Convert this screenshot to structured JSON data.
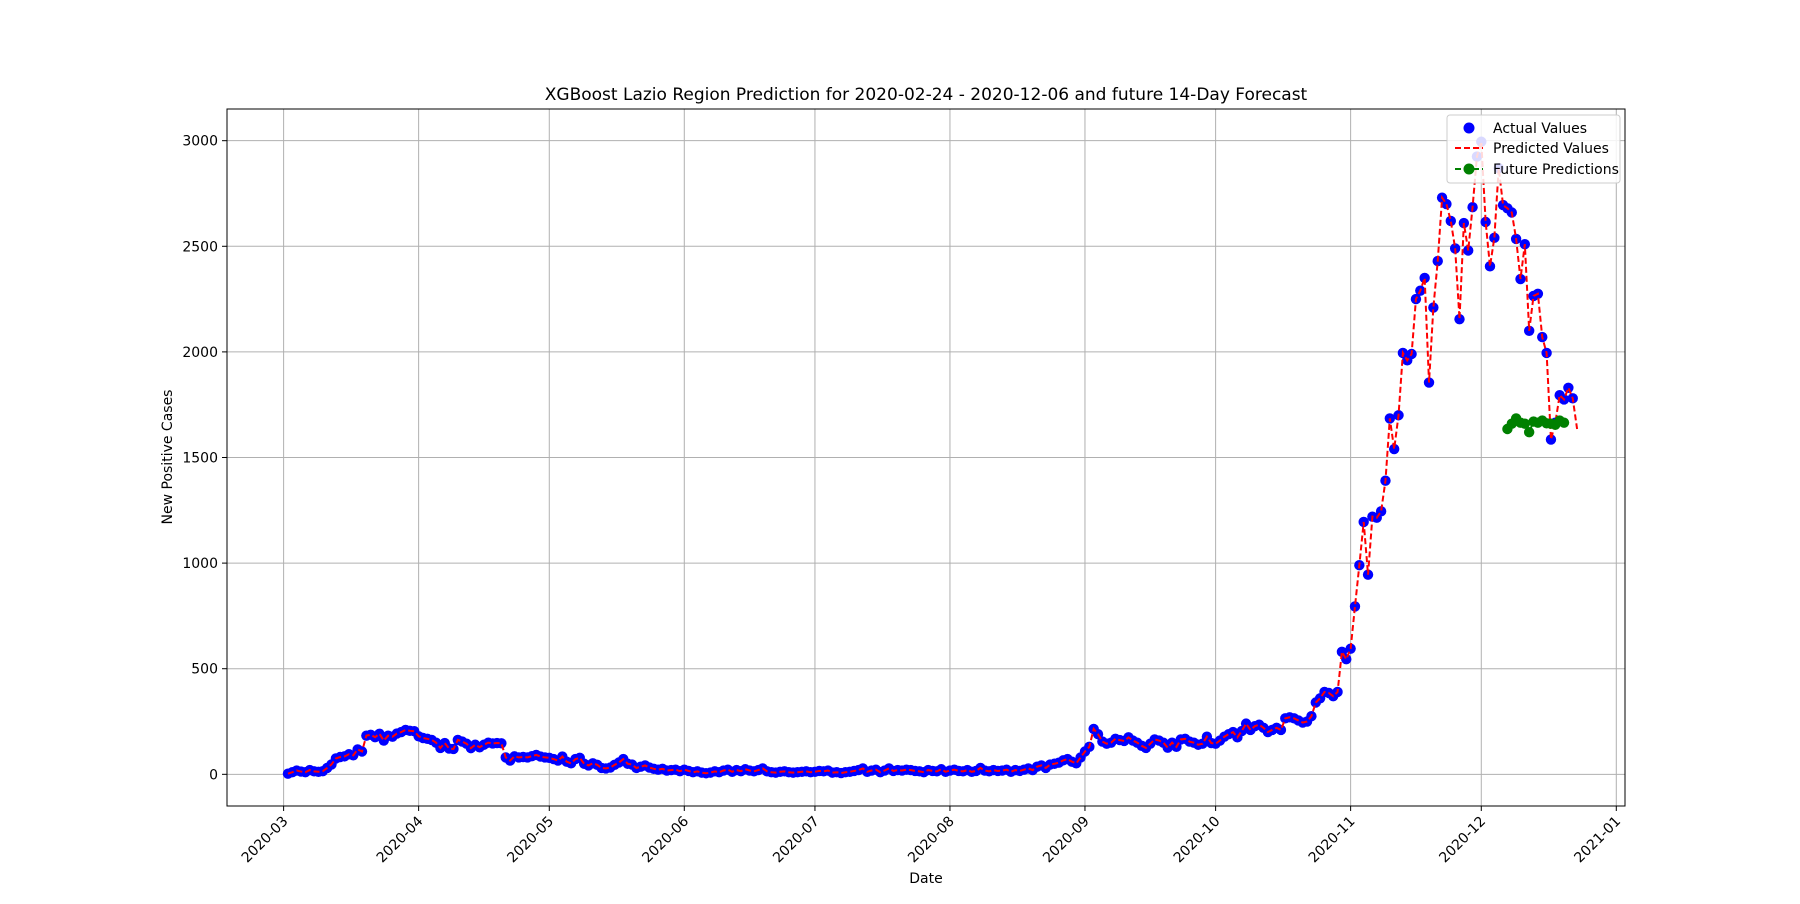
{
  "chart_data": {
    "type": "line",
    "title": "XGBoost Lazio Region Prediction for 2020-02-24 - 2020-12-06 and future 14-Day Forecast",
    "xlabel": "Date",
    "ylabel": "New Positive Cases",
    "x_range": [
      "2020-02-17",
      "2021-01-03"
    ],
    "ylim": [
      -150,
      3150
    ],
    "x_ticks": [
      "2020-03",
      "2020-04",
      "2020-05",
      "2020-06",
      "2020-07",
      "2020-08",
      "2020-09",
      "2020-10",
      "2020-11",
      "2020-12",
      "2021-01"
    ],
    "x_tick_dates": [
      "2020-03-01",
      "2020-04-01",
      "2020-05-01",
      "2020-06-01",
      "2020-07-01",
      "2020-08-01",
      "2020-09-01",
      "2020-10-01",
      "2020-11-01",
      "2020-12-01",
      "2021-01-01"
    ],
    "y_ticks": [
      0,
      500,
      1000,
      1500,
      2000,
      2500,
      3000
    ],
    "grid": true,
    "legend_position": "top-right",
    "legend": [
      "Actual Values",
      "Predicted Values",
      "Future Predictions"
    ],
    "colors": {
      "actual": "#0000ff",
      "predicted": "#ff0000",
      "future": "#008000"
    },
    "series": [
      {
        "name": "Actual Values",
        "style": "markers",
        "start": "2020-03-02",
        "values": [
          3,
          10,
          18,
          13,
          10,
          20,
          14,
          12,
          15,
          30,
          47,
          75,
          82,
          85,
          95,
          90,
          118,
          108,
          183,
          187,
          176,
          192,
          160,
          183,
          178,
          193,
          200,
          210,
          206,
          204,
          180,
          172,
          168,
          163,
          150,
          125,
          148,
          122,
          120,
          163,
          155,
          145,
          124,
          140,
          128,
          140,
          150,
          146,
          148,
          147,
          80,
          65,
          85,
          80,
          82,
          80,
          86,
          92,
          84,
          80,
          78,
          72,
          65,
          84,
          60,
          52,
          72,
          78,
          50,
          42,
          52,
          45,
          30,
          28,
          32,
          45,
          56,
          72,
          50,
          46,
          30,
          36,
          42,
          32,
          26,
          22,
          26,
          18,
          20,
          22,
          15,
          22,
          16,
          10,
          14,
          8,
          5,
          8,
          14,
          10,
          18,
          22,
          12,
          20,
          15,
          24,
          18,
          14,
          20,
          28,
          14,
          10,
          8,
          12,
          14,
          10,
          8,
          10,
          12,
          14,
          10,
          12,
          16,
          14,
          18,
          8,
          10,
          6,
          10,
          12,
          16,
          20,
          28,
          12,
          18,
          22,
          10,
          18,
          28,
          16,
          20,
          18,
          22,
          20,
          16,
          14,
          10,
          20,
          16,
          14,
          24,
          12,
          18,
          22,
          16,
          14,
          20,
          12,
          16,
          30,
          18,
          14,
          20,
          16,
          18,
          22,
          12,
          20,
          16,
          22,
          28,
          20,
          36,
          42,
          30,
          46,
          50,
          55,
          66,
          72,
          60,
          52,
          80,
          108,
          130,
          215,
          190,
          155,
          145,
          150,
          168,
          162,
          158,
          175,
          160,
          150,
          135,
          125,
          145,
          165,
          160,
          150,
          126,
          150,
          130,
          165,
          168,
          155,
          150,
          140,
          145,
          178,
          148,
          145,
          160,
          178,
          190,
          200,
          175,
          205,
          240,
          210,
          228,
          235,
          220,
          200,
          210,
          220,
          210,
          265,
          270,
          265,
          255,
          245,
          250,
          275,
          340,
          360,
          390,
          385,
          370,
          390,
          580,
          545,
          595,
          795,
          990,
          1195,
          945,
          1220,
          1215,
          1245,
          1390,
          1685,
          1540,
          1700,
          1995,
          1960,
          1990,
          2250,
          2290,
          2350,
          1855,
          2210,
          2430,
          2730,
          2700,
          2620,
          2490,
          2155,
          2610,
          2480,
          2685,
          2925,
          2995,
          2615,
          2405,
          2540,
          2870,
          2695,
          2680,
          2660,
          2535,
          2345,
          2510,
          2100,
          2265,
          2275,
          2070,
          1995,
          1585,
          1665,
          1795,
          1775,
          1830,
          1780
        ]
      },
      {
        "name": "Predicted Values",
        "style": "dashed-line",
        "start": "2020-03-02",
        "values": [
          3,
          10,
          18,
          13,
          10,
          20,
          14,
          12,
          15,
          30,
          47,
          75,
          82,
          85,
          95,
          90,
          118,
          108,
          183,
          187,
          176,
          192,
          160,
          183,
          178,
          193,
          200,
          210,
          206,
          204,
          180,
          172,
          168,
          163,
          150,
          125,
          148,
          122,
          120,
          163,
          155,
          145,
          124,
          140,
          128,
          140,
          150,
          146,
          148,
          147,
          80,
          65,
          85,
          80,
          82,
          80,
          86,
          92,
          84,
          80,
          78,
          72,
          65,
          84,
          60,
          52,
          72,
          78,
          50,
          42,
          52,
          45,
          30,
          28,
          32,
          45,
          56,
          72,
          50,
          46,
          30,
          36,
          42,
          32,
          26,
          22,
          26,
          18,
          20,
          22,
          15,
          22,
          16,
          10,
          14,
          8,
          5,
          8,
          14,
          10,
          18,
          22,
          12,
          20,
          15,
          24,
          18,
          14,
          20,
          28,
          14,
          10,
          8,
          12,
          14,
          10,
          8,
          10,
          12,
          14,
          10,
          12,
          16,
          14,
          18,
          8,
          10,
          6,
          10,
          12,
          16,
          20,
          28,
          12,
          18,
          22,
          10,
          18,
          28,
          16,
          20,
          18,
          22,
          20,
          16,
          14,
          10,
          20,
          16,
          14,
          24,
          12,
          18,
          22,
          16,
          14,
          20,
          12,
          16,
          30,
          18,
          14,
          20,
          16,
          18,
          22,
          12,
          20,
          16,
          22,
          28,
          20,
          36,
          42,
          30,
          46,
          50,
          55,
          66,
          72,
          60,
          52,
          80,
          108,
          130,
          215,
          190,
          155,
          145,
          150,
          168,
          162,
          158,
          175,
          160,
          150,
          135,
          125,
          145,
          165,
          160,
          150,
          126,
          150,
          130,
          165,
          168,
          155,
          150,
          140,
          145,
          178,
          148,
          145,
          160,
          178,
          190,
          200,
          175,
          205,
          240,
          210,
          228,
          235,
          220,
          200,
          210,
          220,
          210,
          265,
          270,
          265,
          255,
          245,
          250,
          275,
          340,
          360,
          390,
          385,
          370,
          390,
          580,
          545,
          595,
          795,
          990,
          1195,
          945,
          1220,
          1215,
          1245,
          1390,
          1685,
          1540,
          1700,
          1995,
          1960,
          1990,
          2250,
          2290,
          2350,
          1855,
          2210,
          2430,
          2730,
          2700,
          2620,
          2490,
          2155,
          2610,
          2480,
          2685,
          2925,
          2995,
          2615,
          2405,
          2540,
          2870,
          2695,
          2680,
          2660,
          2535,
          2345,
          2510,
          2100,
          2265,
          2275,
          2070,
          1995,
          1585,
          1665,
          1795,
          1775,
          1830,
          1780,
          1635
        ]
      },
      {
        "name": "Future Predictions",
        "style": "dashed-line-markers",
        "start": "2020-12-07",
        "values": [
          1635,
          1660,
          1685,
          1665,
          1660,
          1620,
          1670,
          1665,
          1675,
          1662,
          1660,
          1655,
          1675,
          1665
        ]
      }
    ]
  }
}
